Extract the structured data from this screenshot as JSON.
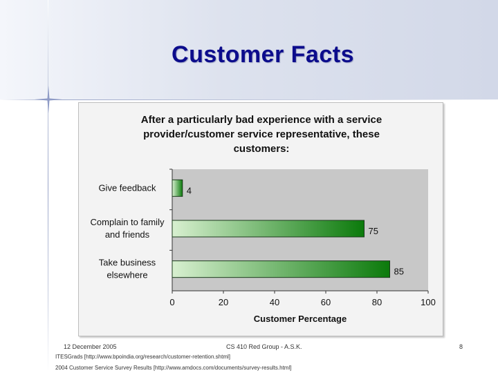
{
  "slide": {
    "title": "Customer Facts"
  },
  "footer": {
    "date": "12 December 2005",
    "center": "CS 410 Red Group - A.S.K.",
    "page": "8",
    "source1": "ITESGrads [http://www.bpoindia.org/research/customer-retention.shtml]",
    "source2": "2004 Customer Service Survey Results [http://www.amdocs.com/documents/survey-results.html]"
  },
  "colors": {
    "title": "#0c0c8c",
    "bar_dark": "#0b7a0b",
    "bar_light": "#d8f0d0",
    "plot_bg": "#c8c8c8"
  },
  "chart_data": {
    "type": "bar",
    "orientation": "horizontal",
    "title_lines": [
      "After a particularly bad experience with a service",
      "provider/customer service representative, these",
      "customers:"
    ],
    "categories": [
      [
        "Give feedback"
      ],
      [
        "Complain to family",
        "and friends"
      ],
      [
        "Take business",
        "elsewhere"
      ]
    ],
    "values": [
      4,
      75,
      85
    ],
    "value_labels": [
      "4",
      "75",
      "85"
    ],
    "xlabel": "Customer Percentage",
    "ylabel": "",
    "xlim": [
      0,
      100
    ],
    "xticks": [
      0,
      20,
      40,
      60,
      80,
      100
    ],
    "grid": false,
    "legend": "none"
  }
}
